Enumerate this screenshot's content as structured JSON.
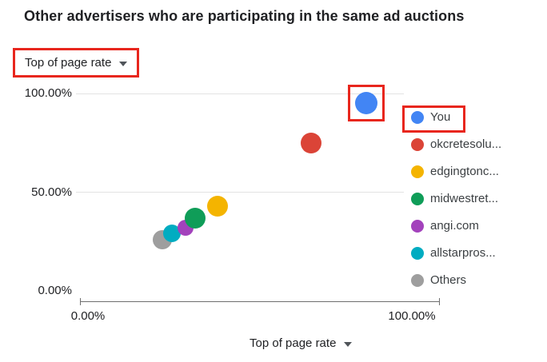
{
  "title": "Other advertisers who are participating in the same ad auctions",
  "controls": {
    "metric_dropdown": {
      "label": "Top of page rate",
      "highlighted": true
    },
    "xaxis_dropdown": {
      "label": "Top of page rate"
    }
  },
  "colors": {
    "highlight": "#e8261d",
    "grid": "#e3e3e3",
    "axis": "#6f6f6f"
  },
  "chart_data": {
    "type": "scatter",
    "title": "Other advertisers who are participating in the same ad auctions",
    "xlabel": "Top of page rate",
    "ylabel": "Top of page rate",
    "xlim": [
      0,
      100
    ],
    "ylim": [
      0,
      100
    ],
    "grid": true,
    "legend_position": "right",
    "yticks": [
      {
        "value": 100,
        "label": "100.00%"
      },
      {
        "value": 50,
        "label": "50.00%"
      },
      {
        "value": 0,
        "label": "0.00%"
      }
    ],
    "xticks": [
      {
        "value": 0,
        "label": "0.00%"
      },
      {
        "value": 100,
        "label": "100.00%"
      }
    ],
    "series": [
      {
        "name": "You",
        "x": 86,
        "y": 95,
        "r": 14,
        "color": "#4285f4",
        "highlighted": true
      },
      {
        "name": "okcretesolu...",
        "x": 69,
        "y": 75,
        "r": 13,
        "color": "#db4437",
        "highlighted": false
      },
      {
        "name": "edgingtonc...",
        "x": 40,
        "y": 43,
        "r": 13,
        "color": "#f4b400",
        "highlighted": false
      },
      {
        "name": "midwestret...",
        "x": 33,
        "y": 37,
        "r": 13,
        "color": "#0f9d58",
        "highlighted": false
      },
      {
        "name": "angi.com",
        "x": 30,
        "y": 32,
        "r": 10,
        "color": "#a342bc",
        "highlighted": false
      },
      {
        "name": "allstarpros...",
        "x": 26,
        "y": 29,
        "r": 11,
        "color": "#00acc1",
        "highlighted": false
      },
      {
        "name": "Others",
        "x": 23,
        "y": 26,
        "r": 12,
        "color": "#9e9e9e",
        "highlighted": false
      }
    ]
  }
}
